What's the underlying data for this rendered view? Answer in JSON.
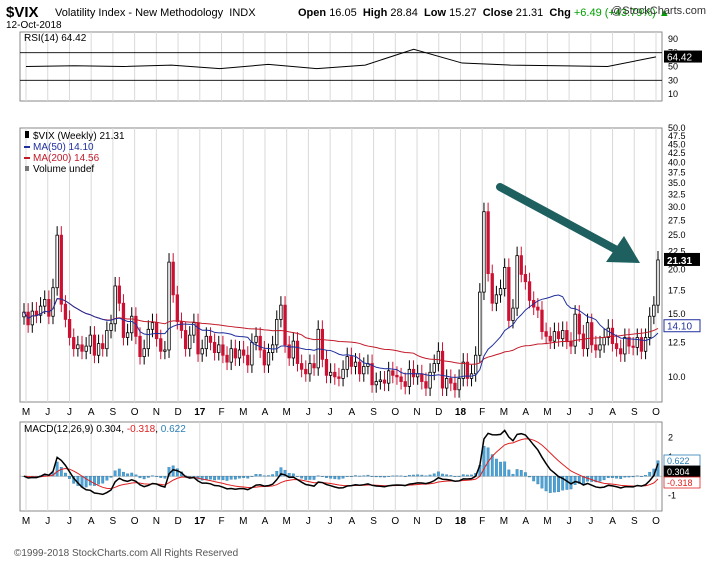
{
  "header": {
    "symbol": "$VIX",
    "name": "Volatility Index - New Methodology",
    "exchange": "INDX",
    "date": "12-Oct-2018",
    "open_label": "Open",
    "open": "16.05",
    "high_label": "High",
    "high": "28.84",
    "low_label": "Low",
    "low": "15.27",
    "close_label": "Close",
    "close": "21.31",
    "chg_label": "Chg",
    "chg": "+6.49 (+43.79%)",
    "chg_arrow": "▲",
    "brand": "@StockCharts.com",
    "copyright": "©1999-2018 StockCharts.com All Rights Reserved"
  },
  "colors": {
    "up": "#000000",
    "down": "#cc1133",
    "ma50": "#1f2f9e",
    "ma200": "#c21a2a",
    "rsi": "#000000",
    "macd": "#000000",
    "signal": "#e02020",
    "hist": "#4aa3d8",
    "arrow": "#1e5f5f",
    "grid": "#d9d9d9"
  },
  "chart_data": [
    {
      "panel": "rsi",
      "type": "line",
      "title": "RSI(14) 64.42",
      "ylim": [
        0,
        100
      ],
      "ticks": [
        90,
        70,
        50,
        30,
        10
      ],
      "reference_lines": [
        70,
        30
      ],
      "last_value": "64.42",
      "x": [
        "2016-05",
        "2016-08",
        "2016-11",
        "2017-02",
        "2017-05",
        "2017-08",
        "2017-11",
        "2018-01",
        "2018-02",
        "2018-03",
        "2018-05",
        "2018-07",
        "2018-09",
        "2018-10"
      ],
      "values": [
        50,
        51,
        50,
        52,
        47,
        53,
        47,
        52,
        75,
        55,
        52,
        51,
        50,
        64
      ]
    },
    {
      "panel": "price",
      "type": "candlestick",
      "title": "$VIX (Weekly) 21.31",
      "scale": "log",
      "ylim": [
        8.5,
        50.0
      ],
      "y_ticks": [
        50.0,
        47.5,
        45.0,
        42.5,
        40.0,
        37.5,
        35.0,
        32.5,
        30.0,
        27.5,
        25.0,
        22.5,
        20.0,
        17.5,
        15.0,
        12.5,
        10.0
      ],
      "last_label": "21.31",
      "x_ticks": [
        "M",
        "J",
        "J",
        "A",
        "S",
        "O",
        "N",
        "D",
        "17",
        "F",
        "M",
        "A",
        "M",
        "J",
        "J",
        "A",
        "S",
        "O",
        "N",
        "D",
        "18",
        "F",
        "M",
        "A",
        "M",
        "J",
        "J",
        "A",
        "S",
        "O"
      ],
      "legend": [
        {
          "label": "$VIX (Weekly) 21.31",
          "marker": "candle"
        },
        {
          "label": "MA(50) 14.10",
          "marker": "line",
          "color_key": "ma50"
        },
        {
          "label": "MA(200) 14.56",
          "marker": "line",
          "color_key": "ma200"
        },
        {
          "label": "Volume undef",
          "marker": "bars"
        }
      ],
      "ma_last": {
        "ma50": "14.10",
        "ma200": "14.56"
      },
      "series_close": [
        15.2,
        14.0,
        15.3,
        14.9,
        15.8,
        16.5,
        14.8,
        17.8,
        25.0,
        16.0,
        14.5,
        12.9,
        12.0,
        12.3,
        11.8,
        12.2,
        13.1,
        11.5,
        12.4,
        12.0,
        13.5,
        14.1,
        18.0,
        16.1,
        12.9,
        13.3,
        14.8,
        13.0,
        11.4,
        12.0,
        13.6,
        14.2,
        12.8,
        11.8,
        11.9,
        21.0,
        17.0,
        14.3,
        13.5,
        12.0,
        13.1,
        14.2,
        11.6,
        12.0,
        13.0,
        12.5,
        11.7,
        12.3,
        11.5,
        11.0,
        12.0,
        11.3,
        11.9,
        11.5,
        10.8,
        12.5,
        13.0,
        11.9,
        10.8,
        11.7,
        12.3,
        14.5,
        15.9,
        12.3,
        11.3,
        12.6,
        10.9,
        10.5,
        10.2,
        10.9,
        10.6,
        13.6,
        11.2,
        10.1,
        10.3,
        10.0,
        9.9,
        10.5,
        11.4,
        10.7,
        11.0,
        10.2,
        10.7,
        10.9,
        9.5,
        9.7,
        9.8,
        9.6,
        10.4,
        10.1,
        10.0,
        9.7,
        9.4,
        10.5,
        10.0,
        10.2,
        9.7,
        9.3,
        10.3,
        10.9,
        11.8,
        9.3,
        9.9,
        9.6,
        9.2,
        9.9,
        11.0,
        9.9,
        10.2,
        11.5,
        17.3,
        29.1,
        19.5,
        16.1,
        17.0,
        17.7,
        20.3,
        14.4,
        15.6,
        21.9,
        19.4,
        18.5,
        16.4,
        15.7,
        15.4,
        13.4,
        13.0,
        12.6,
        13.4,
        12.8,
        13.5,
        12.6,
        12.2,
        15.0,
        13.2,
        12.0,
        14.2,
        12.3,
        11.9,
        12.3,
        12.9,
        13.7,
        12.4,
        12.0,
        11.6,
        12.9,
        12.2,
        12.1,
        12.9,
        11.8,
        12.9,
        14.8,
        15.9,
        21.3
      ]
    },
    {
      "panel": "macd",
      "type": "line",
      "title": "MACD(12,26,9) 0.304, -0.318, 0.622",
      "series": [
        {
          "name": "MACD(12,26,9)",
          "last": "0.304"
        },
        {
          "name": "signal",
          "last": "-0.318"
        },
        {
          "name": "histogram",
          "last": "0.622"
        }
      ],
      "ylim": [
        -1.8,
        2.8
      ],
      "y_ticks": [
        2,
        1,
        0,
        -1
      ],
      "last_labels": [
        "0.622",
        "0.304",
        "-0.318"
      ],
      "x_ticks": [
        "M",
        "J",
        "J",
        "A",
        "S",
        "O",
        "N",
        "D",
        "17",
        "F",
        "M",
        "A",
        "M",
        "J",
        "J",
        "A",
        "S",
        "O",
        "N",
        "D",
        "18",
        "F",
        "M",
        "A",
        "M",
        "J",
        "J",
        "A",
        "S",
        "O"
      ]
    }
  ]
}
